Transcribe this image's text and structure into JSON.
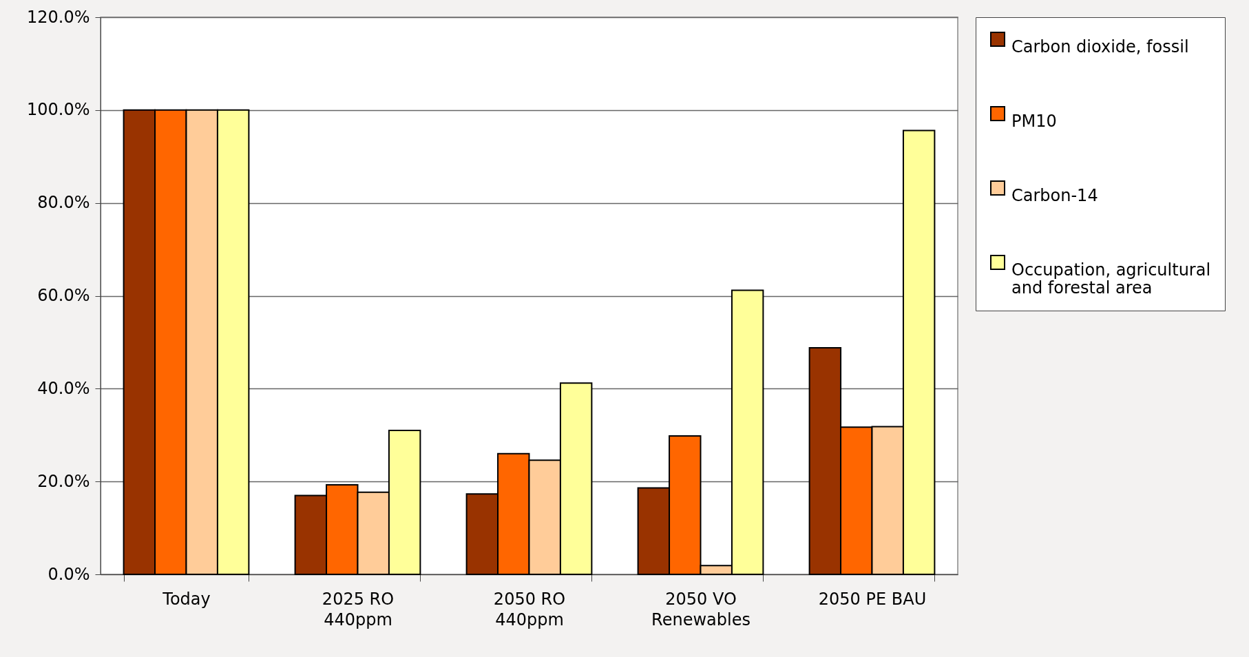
{
  "chart_data": {
    "type": "bar",
    "categories": [
      "Today",
      "2025 RO 440ppm",
      "2050 RO 440ppm",
      "2050 VO Renewables",
      "2050 PE BAU"
    ],
    "series": [
      {
        "name": "Carbon dioxide, fossil",
        "color": "#993300",
        "values": [
          100,
          17.0,
          17.3,
          18.6,
          48.8
        ]
      },
      {
        "name": "PM10",
        "color": "#ff6600",
        "values": [
          100,
          19.3,
          26.0,
          29.8,
          31.7
        ]
      },
      {
        "name": "Carbon-14",
        "color": "#ffcc99",
        "values": [
          100,
          17.7,
          24.6,
          1.9,
          31.8
        ]
      },
      {
        "name": "Occupation, agricultural and forestal area",
        "color": "#ffff99",
        "values": [
          100,
          31.0,
          41.2,
          61.2,
          95.6
        ]
      }
    ],
    "ylim": [
      0,
      120
    ],
    "yticks": [
      {
        "value": 0,
        "label": "0.0%"
      },
      {
        "value": 20,
        "label": "20.0%"
      },
      {
        "value": 40,
        "label": "40.0%"
      },
      {
        "value": 60,
        "label": "60.0%"
      },
      {
        "value": 80,
        "label": "80.0%"
      },
      {
        "value": 100,
        "label": "100.0%"
      },
      {
        "value": 120,
        "label": "120.0%"
      }
    ],
    "grid": "y",
    "legend": "right"
  }
}
